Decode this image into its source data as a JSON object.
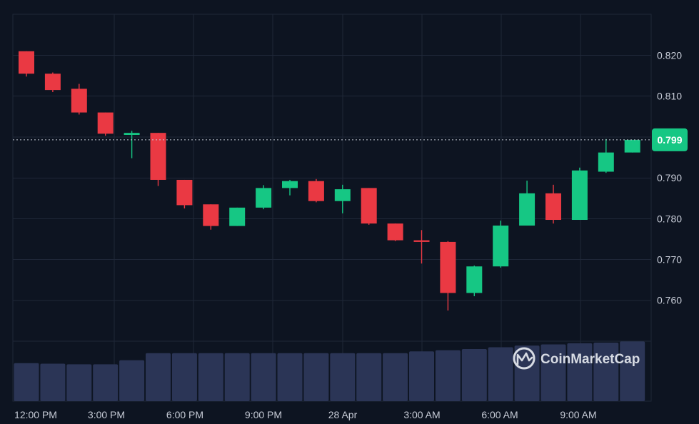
{
  "chart_data": {
    "type": "candlestick",
    "x_tick_labels": [
      "12:00 PM",
      "3:00 PM",
      "6:00 PM",
      "9:00 PM",
      "28 Apr",
      "3:00 AM",
      "6:00 AM",
      "9:00 AM"
    ],
    "y_tick_labels": [
      "0.760",
      "0.770",
      "0.780",
      "0.790",
      "0.810",
      "0.820"
    ],
    "ylim": [
      0.7515,
      0.8295
    ],
    "current_price": 0.7993,
    "current_price_label": "0.799",
    "colors": {
      "up": "#16c784",
      "down": "#ea3943",
      "volume": "#2b3556",
      "price_badge": "#16c784"
    },
    "candles": [
      {
        "o": 0.821,
        "h": 0.821,
        "l": 0.8148,
        "c": 0.8155
      },
      {
        "o": 0.8155,
        "h": 0.8158,
        "l": 0.811,
        "c": 0.8115
      },
      {
        "o": 0.8118,
        "h": 0.813,
        "l": 0.8055,
        "c": 0.806
      },
      {
        "o": 0.806,
        "h": 0.806,
        "l": 0.8003,
        "c": 0.8008
      },
      {
        "o": 0.8005,
        "h": 0.8015,
        "l": 0.7948,
        "c": 0.801
      },
      {
        "o": 0.801,
        "h": 0.801,
        "l": 0.788,
        "c": 0.7895
      },
      {
        "o": 0.7895,
        "h": 0.7895,
        "l": 0.7825,
        "c": 0.7833
      },
      {
        "o": 0.7835,
        "h": 0.7835,
        "l": 0.7773,
        "c": 0.7782
      },
      {
        "o": 0.7782,
        "h": 0.7827,
        "l": 0.7782,
        "c": 0.7827
      },
      {
        "o": 0.7827,
        "h": 0.7882,
        "l": 0.7823,
        "c": 0.7875
      },
      {
        "o": 0.7875,
        "h": 0.7895,
        "l": 0.7857,
        "c": 0.7892
      },
      {
        "o": 0.7892,
        "h": 0.7897,
        "l": 0.784,
        "c": 0.7843
      },
      {
        "o": 0.7843,
        "h": 0.7883,
        "l": 0.7813,
        "c": 0.7872
      },
      {
        "o": 0.7875,
        "h": 0.7875,
        "l": 0.7785,
        "c": 0.7788
      },
      {
        "o": 0.7788,
        "h": 0.7788,
        "l": 0.7745,
        "c": 0.7747
      },
      {
        "o": 0.7747,
        "h": 0.7772,
        "l": 0.769,
        "c": 0.7743
      },
      {
        "o": 0.7743,
        "h": 0.7745,
        "l": 0.7575,
        "c": 0.7618
      },
      {
        "o": 0.7618,
        "h": 0.7685,
        "l": 0.761,
        "c": 0.7683
      },
      {
        "o": 0.7683,
        "h": 0.7795,
        "l": 0.768,
        "c": 0.7783
      },
      {
        "o": 0.7783,
        "h": 0.7893,
        "l": 0.7783,
        "c": 0.7862
      },
      {
        "o": 0.7862,
        "h": 0.7883,
        "l": 0.7788,
        "c": 0.7797
      },
      {
        "o": 0.7797,
        "h": 0.7925,
        "l": 0.7797,
        "c": 0.7918
      },
      {
        "o": 0.7915,
        "h": 0.7995,
        "l": 0.7912,
        "c": 0.7962
      },
      {
        "o": 0.7962,
        "h": 0.7993,
        "l": 0.7962,
        "c": 0.7993
      }
    ],
    "volume_relative": [
      0.65,
      0.64,
      0.63,
      0.63,
      0.7,
      0.82,
      0.82,
      0.82,
      0.82,
      0.82,
      0.82,
      0.82,
      0.82,
      0.82,
      0.82,
      0.85,
      0.87,
      0.89,
      0.92,
      0.95,
      0.97,
      0.99,
      1.0,
      1.02
    ]
  },
  "watermark": {
    "text": "CoinMarketCap",
    "icon": "coinmarketcap-logo-icon"
  }
}
